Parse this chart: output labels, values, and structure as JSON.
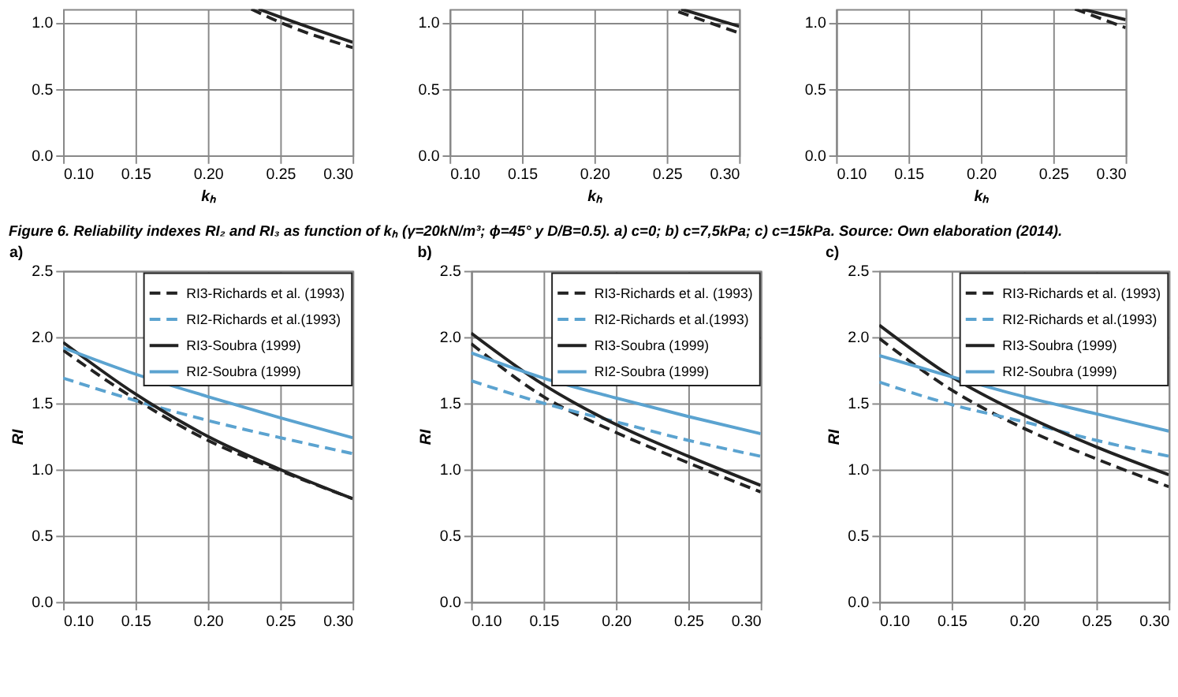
{
  "chart_data": [
    {
      "type": "line",
      "xlabel": "kₕ",
      "xlim": [
        0.1,
        0.3
      ],
      "ylim": [
        0,
        1.1
      ],
      "grid": true,
      "xticks": [
        {
          "value": 0.1,
          "label": "0.10"
        },
        {
          "value": 0.15,
          "label": "0.15"
        },
        {
          "value": 0.2,
          "label": "0.20"
        },
        {
          "value": 0.25,
          "label": "0.25"
        },
        {
          "value": 0.3,
          "label": "0.30"
        }
      ],
      "yticks": [
        {
          "value": 0,
          "label": "0.0"
        },
        {
          "value": 0.5,
          "label": "0.5"
        },
        {
          "value": 1,
          "label": "1.0"
        }
      ],
      "series": [
        {
          "color": "#222222",
          "line_style": "solid",
          "x": [
            0.235,
            0.25,
            0.3
          ],
          "values": [
            1.1,
            1.04,
            0.85
          ]
        },
        {
          "color": "#222222",
          "line_style": "dashed",
          "x": [
            0.23,
            0.25,
            0.3
          ],
          "values": [
            1.1,
            1.0,
            0.81
          ]
        }
      ]
    },
    {
      "type": "line",
      "xlabel": "kₕ",
      "xlim": [
        0.1,
        0.3
      ],
      "ylim": [
        0,
        1.1
      ],
      "grid": true,
      "xticks": [
        {
          "value": 0.1,
          "label": "0.10"
        },
        {
          "value": 0.15,
          "label": "0.15"
        },
        {
          "value": 0.2,
          "label": "0.20"
        },
        {
          "value": 0.25,
          "label": "0.25"
        },
        {
          "value": 0.3,
          "label": "0.30"
        }
      ],
      "yticks": [
        {
          "value": 0,
          "label": "0.0"
        },
        {
          "value": 0.5,
          "label": "0.5"
        },
        {
          "value": 1,
          "label": "1.0"
        }
      ],
      "series": [
        {
          "color": "#222222",
          "line_style": "solid",
          "x": [
            0.26,
            0.3
          ],
          "values": [
            1.1,
            0.97
          ]
        },
        {
          "color": "#222222",
          "line_style": "dashed",
          "x": [
            0.258,
            0.3
          ],
          "values": [
            1.08,
            0.92
          ]
        }
      ]
    },
    {
      "type": "line",
      "xlabel": "kₕ",
      "xlim": [
        0.1,
        0.3
      ],
      "ylim": [
        0,
        1.1
      ],
      "grid": true,
      "xticks": [
        {
          "value": 0.1,
          "label": "0.10"
        },
        {
          "value": 0.15,
          "label": "0.15"
        },
        {
          "value": 0.2,
          "label": "0.20"
        },
        {
          "value": 0.25,
          "label": "0.25"
        },
        {
          "value": 0.3,
          "label": "0.30"
        }
      ],
      "yticks": [
        {
          "value": 0,
          "label": "0.0"
        },
        {
          "value": 0.5,
          "label": "0.5"
        },
        {
          "value": 1,
          "label": "1.0"
        }
      ],
      "series": [
        {
          "color": "#222222",
          "line_style": "solid",
          "x": [
            0.27,
            0.3
          ],
          "values": [
            1.1,
            1.02
          ]
        },
        {
          "color": "#222222",
          "line_style": "dashed",
          "x": [
            0.265,
            0.3
          ],
          "values": [
            1.1,
            0.96
          ]
        }
      ]
    },
    {
      "type": "line",
      "title": "a)",
      "ylabel": "RI",
      "xlim": [
        0.1,
        0.3
      ],
      "ylim": [
        0,
        2.5
      ],
      "grid": true,
      "legend": "top right",
      "annotations": [
        "Figure 6. Reliability indexes RI₂ and RI₃ as function of kₕ (γ=20kN/m³; ϕ=45° y D/B=0.5). a) c=0; b) c=7,5kPa; c) c=15kPa. Source: Own elaboration (2014)."
      ],
      "xticks": [
        {
          "value": 0.1,
          "label": "0.10"
        },
        {
          "value": 0.15,
          "label": "0.15"
        },
        {
          "value": 0.2,
          "label": "0.20"
        },
        {
          "value": 0.25,
          "label": "0.25"
        },
        {
          "value": 0.3,
          "label": "0.30"
        }
      ],
      "yticks": [
        {
          "value": 0,
          "label": "0.0"
        },
        {
          "value": 0.5,
          "label": "0.5"
        },
        {
          "value": 1,
          "label": "1.0"
        },
        {
          "value": 1.5,
          "label": "1.5"
        },
        {
          "value": 2,
          "label": "2.0"
        },
        {
          "value": 2.5,
          "label": "2.5"
        }
      ],
      "x": [
        0.1,
        0.15,
        0.2,
        0.25,
        0.3
      ],
      "series": [
        {
          "name": "RI3-Richards et al. (1993)",
          "color": "#222222",
          "line_style": "dashed",
          "values": [
            1.9,
            1.53,
            1.22,
            0.99,
            0.78
          ]
        },
        {
          "name": "RI2-Richards et al.(1993)",
          "color": "#5ba3d0",
          "line_style": "dashed",
          "values": [
            1.69,
            1.52,
            1.37,
            1.24,
            1.12
          ]
        },
        {
          "name": "RI3-Soubra (1999)",
          "color": "#222222",
          "line_style": "solid",
          "values": [
            1.96,
            1.57,
            1.25,
            1.0,
            0.78
          ]
        },
        {
          "name": "RI2-Soubra (1999)",
          "color": "#5ba3d0",
          "line_style": "solid",
          "values": [
            1.92,
            1.72,
            1.55,
            1.39,
            1.24
          ]
        }
      ]
    },
    {
      "type": "line",
      "title": "b)",
      "ylabel": "RI",
      "xlim": [
        0.1,
        0.3
      ],
      "ylim": [
        0,
        2.5
      ],
      "grid": true,
      "legend": "top right",
      "xticks": [
        {
          "value": 0.1,
          "label": "0.10"
        },
        {
          "value": 0.15,
          "label": "0.15"
        },
        {
          "value": 0.2,
          "label": "0.20"
        },
        {
          "value": 0.25,
          "label": "0.25"
        },
        {
          "value": 0.3,
          "label": "0.30"
        }
      ],
      "yticks": [
        {
          "value": 0,
          "label": "0.0"
        },
        {
          "value": 0.5,
          "label": "0.5"
        },
        {
          "value": 1,
          "label": "1.0"
        },
        {
          "value": 1.5,
          "label": "1.5"
        },
        {
          "value": 2,
          "label": "2.0"
        },
        {
          "value": 2.5,
          "label": "2.5"
        }
      ],
      "x": [
        0.1,
        0.15,
        0.2,
        0.25,
        0.3
      ],
      "series": [
        {
          "name": "RI3-Richards et al. (1993)",
          "color": "#222222",
          "line_style": "dashed",
          "values": [
            1.95,
            1.55,
            1.28,
            1.05,
            0.83
          ]
        },
        {
          "name": "RI2-Richards et al.(1993)",
          "color": "#5ba3d0",
          "line_style": "dashed",
          "values": [
            1.67,
            1.5,
            1.36,
            1.22,
            1.1
          ]
        },
        {
          "name": "RI3-Soubra (1999)",
          "color": "#222222",
          "line_style": "solid",
          "values": [
            2.03,
            1.64,
            1.34,
            1.1,
            0.88
          ]
        },
        {
          "name": "RI2-Soubra (1999)",
          "color": "#5ba3d0",
          "line_style": "solid",
          "values": [
            1.88,
            1.69,
            1.54,
            1.4,
            1.27
          ]
        }
      ]
    },
    {
      "type": "line",
      "title": "c)",
      "ylabel": "RI",
      "xlim": [
        0.1,
        0.3
      ],
      "ylim": [
        0,
        2.5
      ],
      "grid": true,
      "legend": "top right",
      "xticks": [
        {
          "value": 0.1,
          "label": "0.10"
        },
        {
          "value": 0.15,
          "label": "0.15"
        },
        {
          "value": 0.2,
          "label": "0.20"
        },
        {
          "value": 0.25,
          "label": "0.25"
        },
        {
          "value": 0.3,
          "label": "0.30"
        }
      ],
      "yticks": [
        {
          "value": 0,
          "label": "0.0"
        },
        {
          "value": 0.5,
          "label": "0.5"
        },
        {
          "value": 1,
          "label": "1.0"
        },
        {
          "value": 1.5,
          "label": "1.5"
        },
        {
          "value": 2,
          "label": "2.0"
        },
        {
          "value": 2.5,
          "label": "2.5"
        }
      ],
      "x": [
        0.1,
        0.15,
        0.2,
        0.25,
        0.3
      ],
      "series": [
        {
          "name": "RI3-Richards et al. (1993)",
          "color": "#222222",
          "line_style": "dashed",
          "values": [
            1.99,
            1.6,
            1.31,
            1.08,
            0.87
          ]
        },
        {
          "name": "RI2-Richards et al.(1993)",
          "color": "#5ba3d0",
          "line_style": "dashed",
          "values": [
            1.66,
            1.49,
            1.36,
            1.22,
            1.1
          ]
        },
        {
          "name": "RI3-Soubra (1999)",
          "color": "#222222",
          "line_style": "solid",
          "values": [
            2.09,
            1.7,
            1.41,
            1.17,
            0.96
          ]
        },
        {
          "name": "RI2-Soubra (1999)",
          "color": "#5ba3d0",
          "line_style": "solid",
          "values": [
            1.86,
            1.7,
            1.55,
            1.42,
            1.29
          ]
        }
      ]
    }
  ]
}
